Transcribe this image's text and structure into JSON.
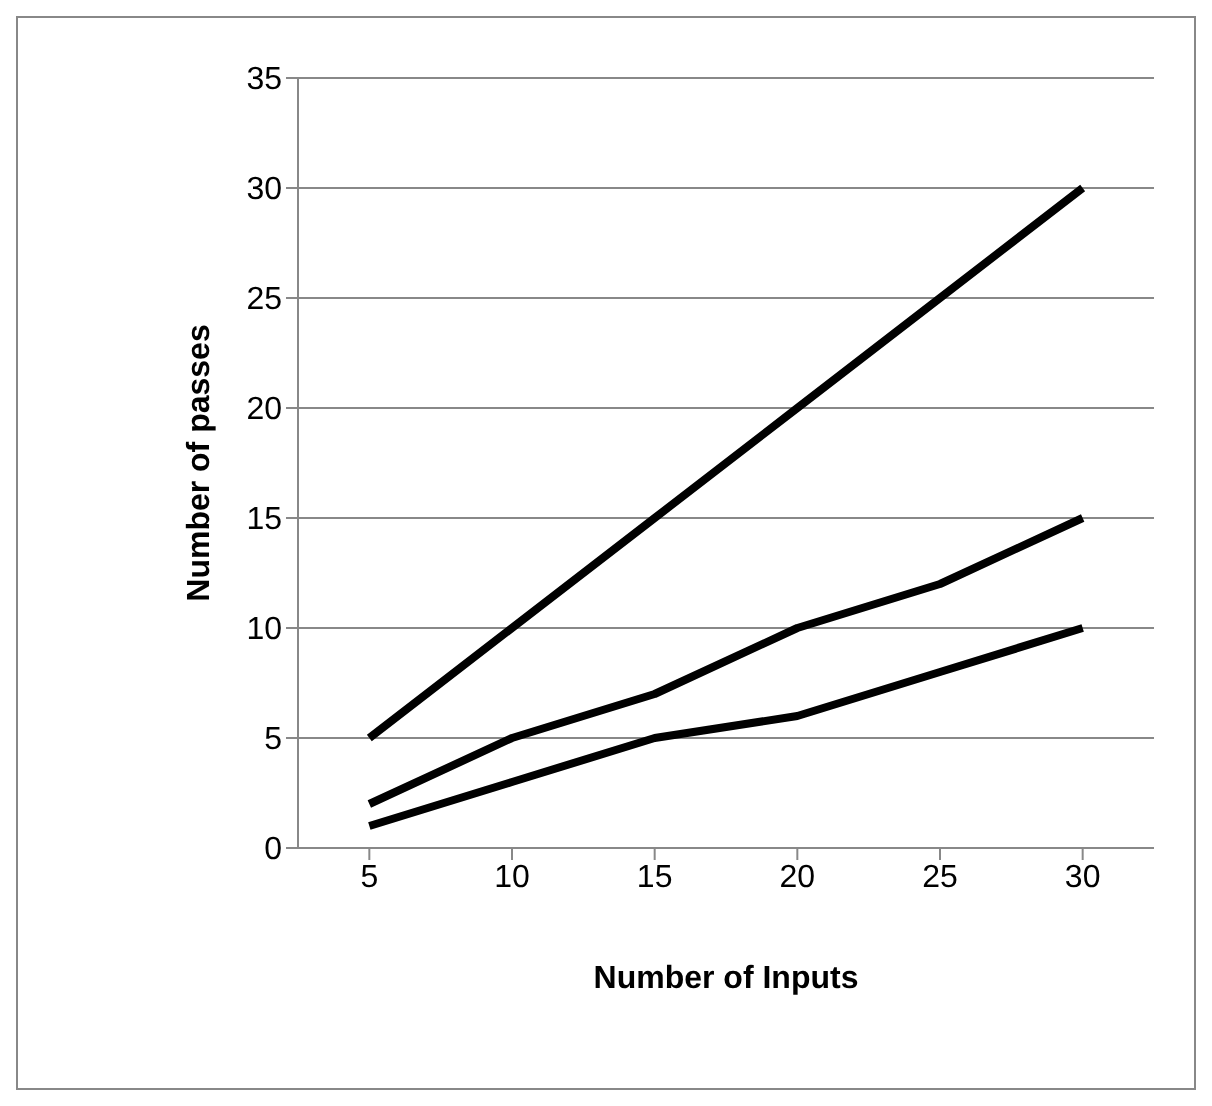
{
  "chart_data": {
    "type": "line",
    "xlabel": "Number of Inputs",
    "ylabel": "Number of passes",
    "categories": [
      "5",
      "10",
      "15",
      "20",
      "25",
      "30"
    ],
    "series": [
      {
        "color": "#000000",
        "values": [
          5,
          10,
          15,
          20,
          25,
          30
        ]
      },
      {
        "color": "#000000",
        "values": [
          2,
          5,
          7,
          10,
          12,
          15
        ]
      },
      {
        "color": "#000000",
        "values": [
          1,
          3,
          5,
          6,
          8,
          10
        ]
      }
    ],
    "ylim": [
      0,
      35
    ],
    "yticks": [
      0,
      5,
      10,
      15,
      20,
      25,
      30,
      35
    ],
    "grid": "y",
    "marker": "none",
    "line_style": "solid"
  }
}
